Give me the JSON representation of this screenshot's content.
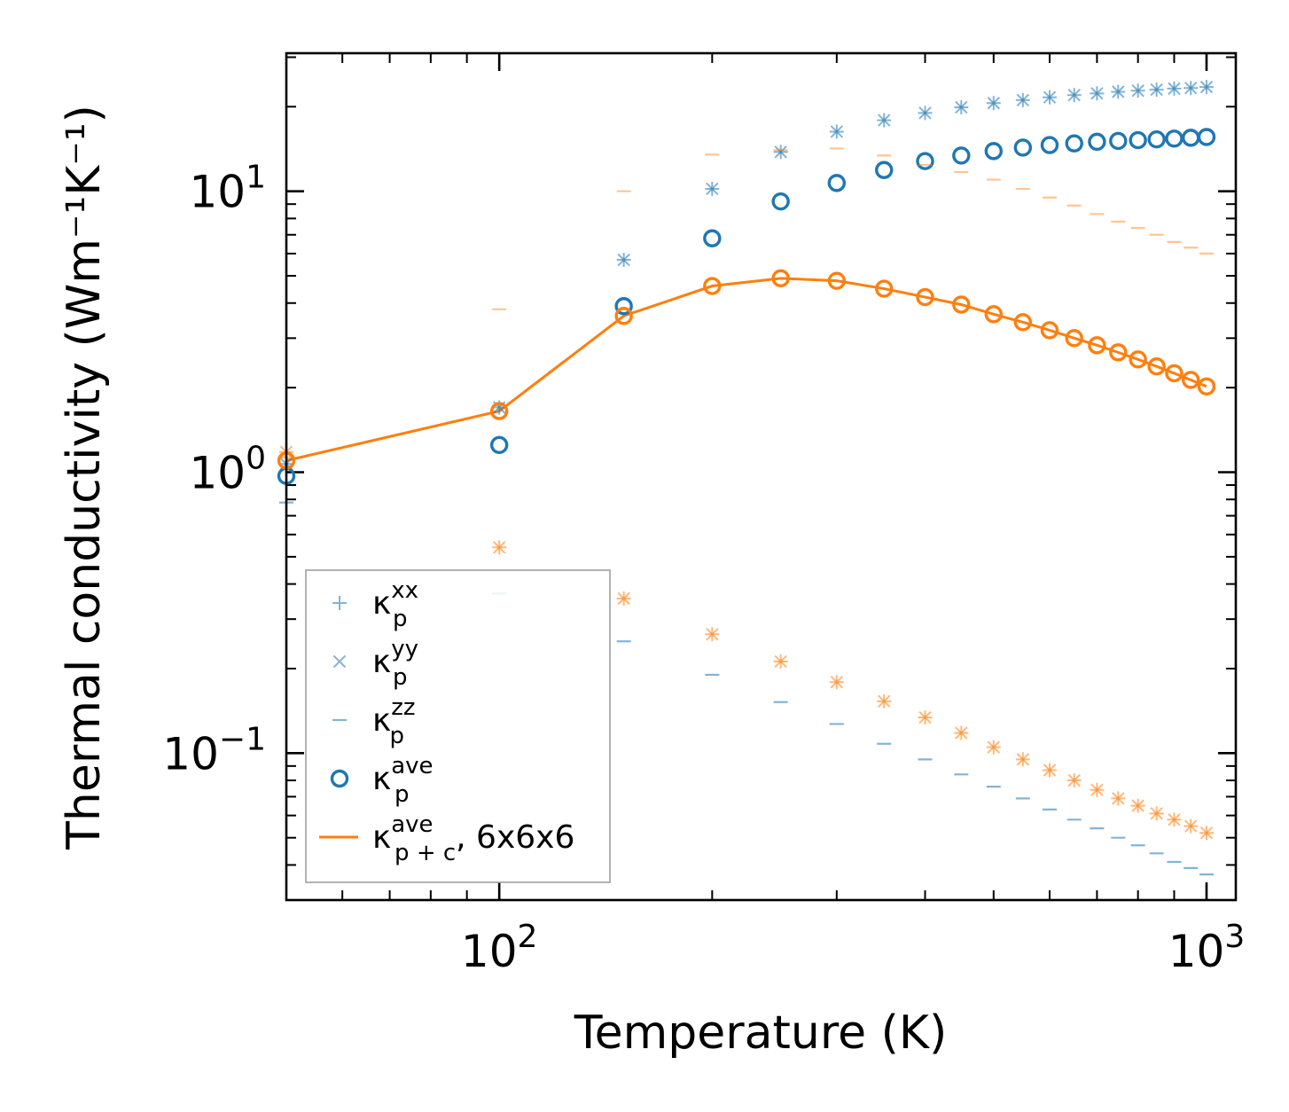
{
  "chart_data": {
    "type": "scatter",
    "title": "",
    "xlabel": "Temperature (K)",
    "ylabel": "Thermal conductivity (Wm⁻¹K⁻¹)",
    "xscale": "log",
    "yscale": "log",
    "xlim": [
      50,
      1100
    ],
    "ylim": [
      0.03,
      31
    ],
    "x_ticks": [
      {
        "value": 100,
        "base": "10",
        "exp": "2"
      },
      {
        "value": 1000,
        "base": "10",
        "exp": "3"
      }
    ],
    "y_ticks": [
      {
        "value": 0.1,
        "base": "10",
        "exp": "−1"
      },
      {
        "value": 1,
        "base": "10",
        "exp": "0"
      },
      {
        "value": 10,
        "base": "10",
        "exp": "1"
      }
    ],
    "temperatures": [
      50,
      100,
      150,
      200,
      250,
      300,
      350,
      400,
      450,
      500,
      550,
      600,
      650,
      700,
      750,
      800,
      850,
      900,
      950,
      1000
    ],
    "colors": {
      "blue": "#1f77b4",
      "orange": "#ff7f0e"
    },
    "series": [
      {
        "name": "κp^xx, blue",
        "legend": true,
        "color": "blue",
        "marker": "plus",
        "alpha": 0.55,
        "values": [
          1.07,
          1.7,
          5.7,
          10.2,
          13.8,
          16.3,
          17.9,
          19.0,
          19.9,
          20.6,
          21.1,
          21.6,
          22.0,
          22.3,
          22.6,
          22.8,
          23.0,
          23.2,
          23.3,
          23.5
        ]
      },
      {
        "name": "κp^yy, blue",
        "legend": true,
        "color": "blue",
        "marker": "x",
        "alpha": 0.55,
        "values": [
          1.07,
          1.7,
          5.7,
          10.2,
          13.8,
          16.3,
          17.9,
          19.0,
          19.9,
          20.6,
          21.1,
          21.6,
          22.0,
          22.3,
          22.6,
          22.8,
          23.0,
          23.2,
          23.3,
          23.5
        ]
      },
      {
        "name": "κp^zz, blue",
        "legend": true,
        "color": "blue",
        "marker": "hline",
        "alpha": 0.55,
        "values": [
          0.78,
          0.37,
          0.25,
          0.19,
          0.152,
          0.127,
          0.108,
          0.095,
          0.084,
          0.076,
          0.069,
          0.063,
          0.058,
          0.054,
          0.05,
          0.047,
          0.044,
          0.041,
          0.039,
          0.037
        ]
      },
      {
        "name": "κp^ave, blue",
        "legend": true,
        "color": "blue",
        "marker": "circle",
        "alpha": 1,
        "values": [
          0.97,
          1.25,
          3.9,
          6.8,
          9.2,
          10.7,
          11.9,
          12.8,
          13.4,
          13.9,
          14.3,
          14.6,
          14.8,
          15.0,
          15.1,
          15.2,
          15.3,
          15.4,
          15.5,
          15.6
        ]
      },
      {
        "name": "κp+c^xx, orange",
        "legend": false,
        "color": "orange",
        "marker": "plus",
        "alpha": 0.55,
        "values": [
          1.18,
          0.54,
          0.355,
          0.265,
          0.212,
          0.179,
          0.153,
          0.134,
          0.118,
          0.105,
          0.095,
          0.087,
          0.08,
          0.074,
          0.069,
          0.065,
          0.061,
          0.058,
          0.055,
          0.052
        ]
      },
      {
        "name": "κp+c^yy, orange",
        "legend": false,
        "color": "orange",
        "marker": "x",
        "alpha": 0.55,
        "values": [
          1.18,
          0.54,
          0.355,
          0.265,
          0.212,
          0.179,
          0.153,
          0.134,
          0.118,
          0.105,
          0.095,
          0.087,
          0.08,
          0.074,
          0.069,
          0.065,
          0.061,
          0.058,
          0.055,
          0.052
        ]
      },
      {
        "name": "κp+c^zz, orange",
        "legend": false,
        "color": "orange",
        "marker": "hline",
        "alpha": 0.45,
        "values": [
          1.13,
          3.8,
          10.0,
          13.5,
          14.0,
          14.2,
          13.4,
          12.4,
          11.7,
          11.0,
          10.2,
          9.5,
          8.9,
          8.3,
          7.8,
          7.4,
          7.0,
          6.6,
          6.3,
          6.0
        ]
      },
      {
        "name": "κp+c^ave circles, orange",
        "legend": false,
        "color": "orange",
        "marker": "circle",
        "alpha": 1,
        "values": [
          1.1,
          1.65,
          3.6,
          4.6,
          4.9,
          4.8,
          4.5,
          4.2,
          3.95,
          3.65,
          3.42,
          3.2,
          3.0,
          2.83,
          2.67,
          2.52,
          2.38,
          2.25,
          2.13,
          2.02
        ]
      },
      {
        "name": "κp+c^ave, 6x6x6, orange",
        "legend": true,
        "color": "orange",
        "marker": "line",
        "alpha": 1,
        "values": [
          1.1,
          1.65,
          3.6,
          4.6,
          4.9,
          4.8,
          4.5,
          4.2,
          3.95,
          3.65,
          3.42,
          3.2,
          3.0,
          2.83,
          2.67,
          2.52,
          2.38,
          2.25,
          2.13,
          2.02
        ]
      }
    ],
    "legend": {
      "position": "lower-left",
      "entries": [
        {
          "symbol": "κ",
          "sub": "p",
          "sup": "xx",
          "suffix": "",
          "marker": "plus",
          "color": "blue",
          "alpha": 0.55
        },
        {
          "symbol": "κ",
          "sub": "p",
          "sup": "yy",
          "suffix": "",
          "marker": "x",
          "color": "blue",
          "alpha": 0.55
        },
        {
          "symbol": "κ",
          "sub": "p",
          "sup": "zz",
          "suffix": "",
          "marker": "hline",
          "color": "blue",
          "alpha": 0.55
        },
        {
          "symbol": "κ",
          "sub": "p",
          "sup": "ave",
          "suffix": "",
          "marker": "circle",
          "color": "blue",
          "alpha": 1
        },
        {
          "symbol": "κ",
          "sub": "p + c",
          "sup": "ave",
          "suffix": ", 6x6x6",
          "marker": "line",
          "color": "orange",
          "alpha": 1
        }
      ]
    }
  }
}
